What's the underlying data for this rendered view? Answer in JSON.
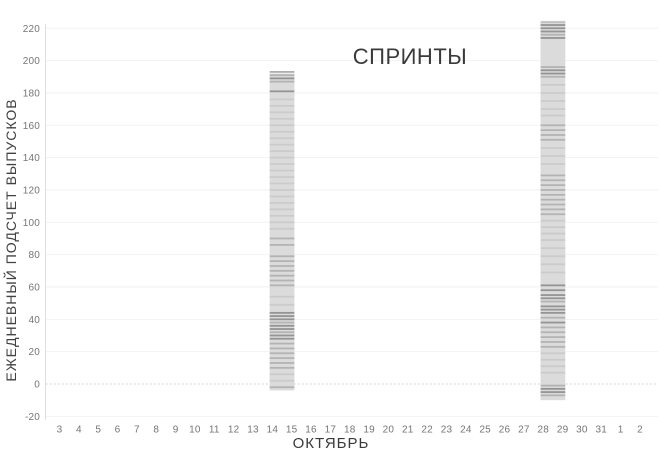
{
  "chart_data": {
    "type": "candlestick-strip",
    "title": "СПРИНТЫ",
    "xlabel": "ОКТЯБРЬ",
    "ylabel": "ЕЖЕДНЕВНЫЙ ПОДСЧЕТ ВЫПУСКОВ",
    "x_categories": [
      "3",
      "4",
      "5",
      "6",
      "7",
      "8",
      "9",
      "10",
      "11",
      "12",
      "13",
      "14",
      "15",
      "16",
      "17",
      "18",
      "19",
      "20",
      "21",
      "22",
      "23",
      "24",
      "25",
      "26",
      "27",
      "28",
      "29",
      "30",
      "31",
      "1",
      "2"
    ],
    "y_ticks": [
      220,
      200,
      180,
      160,
      140,
      120,
      100,
      80,
      60,
      40,
      20,
      0,
      -20
    ],
    "ylim": [
      -20,
      230
    ],
    "grid": true,
    "zero_line": "dotted",
    "legend": "none",
    "colors": {
      "bar_base": "#dbdbdb",
      "stripe_faint": "rgba(0,0,0,0.07)",
      "stripe_medium": "rgba(0,0,0,0.18)",
      "stripe_dark": "rgba(0,0,0,0.32)",
      "gridline": "#f2f2f2",
      "zero_line": "#c7c7c7",
      "axis_line": "#dedede",
      "tick_text": "#757575",
      "title_text": "#3a3a3a"
    },
    "bars": [
      {
        "name": "sprint-bar-oct-14-15",
        "day_start": "14",
        "day_end": "15",
        "low": -4,
        "high": 192,
        "stripes": [
          [
            193,
            3
          ],
          [
            191,
            2
          ],
          [
            189,
            3
          ],
          [
            187,
            2
          ],
          [
            181,
            3
          ],
          [
            176,
            1
          ],
          [
            172,
            1
          ],
          [
            168,
            1
          ],
          [
            164,
            1
          ],
          [
            160,
            1
          ],
          [
            156,
            1
          ],
          [
            152,
            1
          ],
          [
            148,
            1
          ],
          [
            144,
            1
          ],
          [
            140,
            1
          ],
          [
            136,
            1
          ],
          [
            132,
            1
          ],
          [
            128,
            1
          ],
          [
            124,
            1
          ],
          [
            120,
            1
          ],
          [
            116,
            1
          ],
          [
            112,
            1
          ],
          [
            108,
            1
          ],
          [
            104,
            1
          ],
          [
            100,
            1
          ],
          [
            96,
            1
          ],
          [
            90,
            2
          ],
          [
            86,
            2
          ],
          [
            79,
            2
          ],
          [
            76,
            2
          ],
          [
            73,
            2
          ],
          [
            70,
            2
          ],
          [
            67,
            2
          ],
          [
            64,
            2
          ],
          [
            61,
            2
          ],
          [
            54,
            1
          ],
          [
            49,
            1
          ],
          [
            44,
            3
          ],
          [
            42,
            3
          ],
          [
            40,
            3
          ],
          [
            38,
            2
          ],
          [
            36,
            3
          ],
          [
            34,
            3
          ],
          [
            32,
            2
          ],
          [
            30,
            3
          ],
          [
            28,
            3
          ],
          [
            25,
            2
          ],
          [
            22,
            2
          ],
          [
            19,
            2
          ],
          [
            16,
            2
          ],
          [
            13,
            2
          ],
          [
            10,
            2
          ],
          [
            6,
            1
          ],
          [
            2,
            1
          ],
          [
            -2,
            2
          ]
        ]
      },
      {
        "name": "sprint-bar-oct-28-29",
        "day_start": "28",
        "day_end": "29",
        "low": -10,
        "high": 224,
        "stripes": [
          [
            224,
            2
          ],
          [
            222,
            3
          ],
          [
            220,
            3
          ],
          [
            218,
            3
          ],
          [
            216,
            2
          ],
          [
            214,
            3
          ],
          [
            196,
            2
          ],
          [
            194,
            3
          ],
          [
            192,
            3
          ],
          [
            190,
            2
          ],
          [
            185,
            1
          ],
          [
            180,
            1
          ],
          [
            175,
            1
          ],
          [
            170,
            1
          ],
          [
            166,
            1
          ],
          [
            160,
            2
          ],
          [
            157,
            2
          ],
          [
            154,
            2
          ],
          [
            151,
            2
          ],
          [
            146,
            1
          ],
          [
            141,
            1
          ],
          [
            136,
            1
          ],
          [
            129,
            2
          ],
          [
            126,
            2
          ],
          [
            123,
            2
          ],
          [
            120,
            2
          ],
          [
            117,
            2
          ],
          [
            114,
            2
          ],
          [
            111,
            2
          ],
          [
            108,
            2
          ],
          [
            105,
            2
          ],
          [
            101,
            1
          ],
          [
            97,
            1
          ],
          [
            93,
            1
          ],
          [
            89,
            1
          ],
          [
            84,
            1
          ],
          [
            79,
            1
          ],
          [
            74,
            1
          ],
          [
            69,
            1
          ],
          [
            61,
            3
          ],
          [
            58,
            3
          ],
          [
            55,
            3
          ],
          [
            53,
            3
          ],
          [
            51,
            2
          ],
          [
            48,
            3
          ],
          [
            46,
            3
          ],
          [
            44,
            3
          ],
          [
            41,
            2
          ],
          [
            38,
            3
          ],
          [
            35,
            2
          ],
          [
            32,
            2
          ],
          [
            29,
            2
          ],
          [
            26,
            2
          ],
          [
            23,
            2
          ],
          [
            19,
            1
          ],
          [
            15,
            1
          ],
          [
            11,
            1
          ],
          [
            7,
            1
          ],
          [
            -1,
            2
          ],
          [
            -3,
            3
          ],
          [
            -5,
            3
          ],
          [
            -7,
            2
          ]
        ]
      }
    ]
  }
}
